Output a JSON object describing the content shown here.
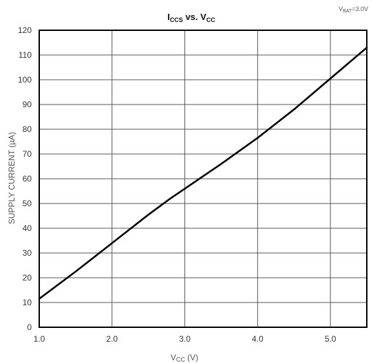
{
  "chart_data": {
    "type": "line",
    "title": {
      "main": "I",
      "sub": "CCS",
      "mid": " vs. V",
      "sub2": "CC"
    },
    "annotation": {
      "main": "V",
      "sub": "BAT",
      "rest": "=3.0V"
    },
    "xlabel": {
      "main": "V",
      "sub": "CC",
      "rest": " (V)"
    },
    "ylabel": "SUPPLY CURRENT (µA)",
    "xlim": [
      1.0,
      5.5
    ],
    "ylim": [
      0,
      120
    ],
    "xticks": [
      1.0,
      2.0,
      3.0,
      4.0,
      5.0
    ],
    "xtick_labels": [
      "1.0",
      "2.0",
      "3.0",
      "4.0",
      "5.0"
    ],
    "yticks": [
      0,
      10,
      20,
      30,
      40,
      50,
      60,
      70,
      80,
      90,
      100,
      110,
      120
    ],
    "ytick_labels": [
      "0",
      "10",
      "20",
      "30",
      "40",
      "50",
      "60",
      "70",
      "80",
      "90",
      "100",
      "110",
      "120"
    ],
    "grid": true,
    "series": [
      {
        "x": [
          1.0,
          1.5,
          2.0,
          2.5,
          2.8,
          3.0,
          3.5,
          4.0,
          4.5,
          5.0,
          5.5
        ],
        "y": [
          11.5,
          22.5,
          34,
          45.5,
          52,
          56,
          66,
          76.5,
          88,
          100.5,
          113
        ]
      }
    ]
  }
}
